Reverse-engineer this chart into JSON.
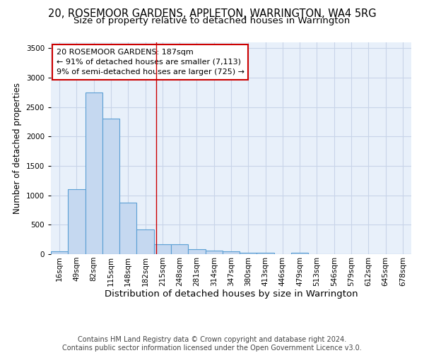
{
  "title": "20, ROSEMOOR GARDENS, APPLETON, WARRINGTON, WA4 5RG",
  "subtitle": "Size of property relative to detached houses in Warrington",
  "xlabel": "Distribution of detached houses by size in Warrington",
  "ylabel": "Number of detached properties",
  "categories": [
    "16sqm",
    "49sqm",
    "82sqm",
    "115sqm",
    "148sqm",
    "182sqm",
    "215sqm",
    "248sqm",
    "281sqm",
    "314sqm",
    "347sqm",
    "380sqm",
    "413sqm",
    "446sqm",
    "479sqm",
    "513sqm",
    "546sqm",
    "579sqm",
    "612sqm",
    "645sqm",
    "678sqm"
  ],
  "values": [
    50,
    1100,
    2750,
    2300,
    880,
    420,
    170,
    165,
    90,
    60,
    50,
    30,
    30,
    5,
    25,
    0,
    0,
    0,
    0,
    0,
    0
  ],
  "bar_color": "#c5d8f0",
  "bar_edge_color": "#5a9fd4",
  "bar_linewidth": 0.8,
  "grid_color": "#c8d4e8",
  "bg_color": "#e8f0fa",
  "red_line_x": 5.62,
  "annotation_line1": "20 ROSEMOOR GARDENS: 187sqm",
  "annotation_line2": "← 91% of detached houses are smaller (7,113)",
  "annotation_line3": "9% of semi-detached houses are larger (725) →",
  "annotation_box_color": "#ffffff",
  "annotation_box_edge": "#cc0000",
  "property_line_color": "#cc0000",
  "footer_line1": "Contains HM Land Registry data © Crown copyright and database right 2024.",
  "footer_line2": "Contains public sector information licensed under the Open Government Licence v3.0.",
  "ylim": [
    0,
    3600
  ],
  "title_fontsize": 10.5,
  "subtitle_fontsize": 9.5,
  "xlabel_fontsize": 9.5,
  "ylabel_fontsize": 8.5,
  "tick_fontsize": 7.5,
  "annotation_fontsize": 8,
  "footer_fontsize": 7
}
